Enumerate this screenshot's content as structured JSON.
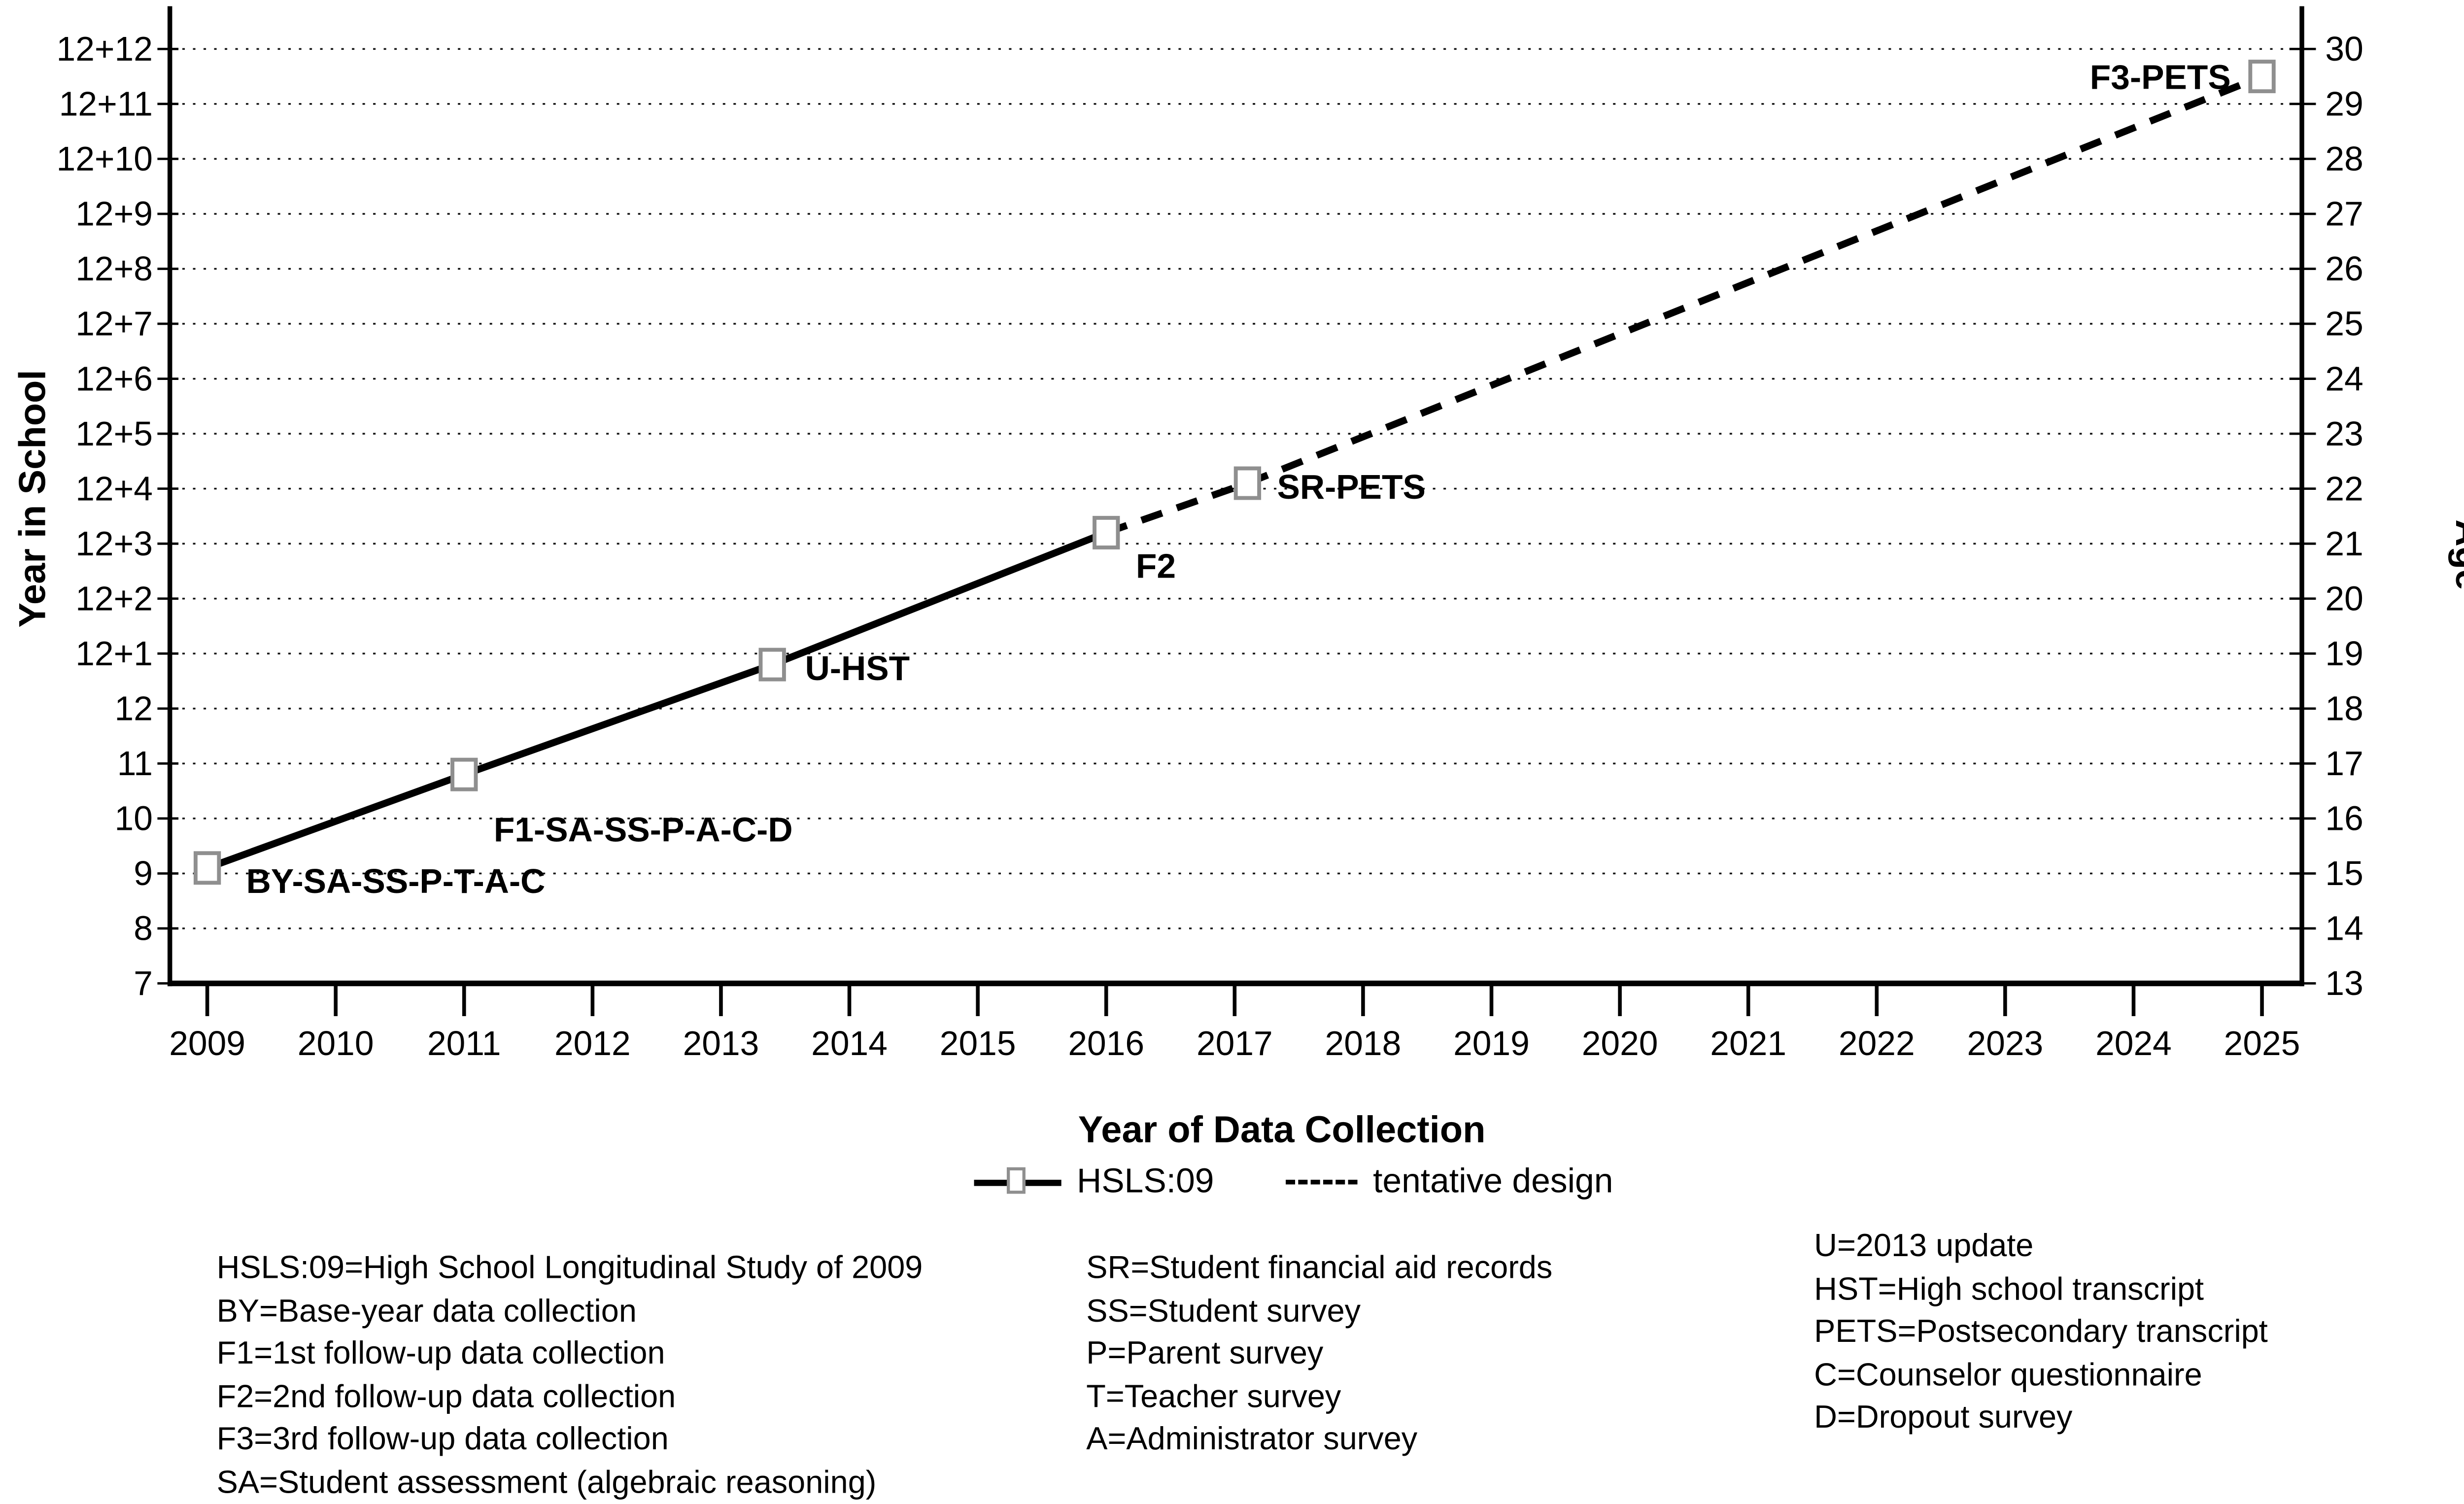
{
  "chart_data": {
    "type": "line",
    "title": "",
    "xlabel": "Year of Data Collection",
    "ylabel_left": "Year in School",
    "ylabel_right": "Age",
    "x_ticks": [
      2009,
      2010,
      2011,
      2012,
      2013,
      2014,
      2015,
      2016,
      2017,
      2018,
      2019,
      2020,
      2021,
      2022,
      2023,
      2024,
      2025
    ],
    "y_ticks_left": [
      "7",
      "8",
      "9",
      "10",
      "11",
      "12",
      "12+1",
      "12+2",
      "12+3",
      "12+4",
      "12+5",
      "12+6",
      "12+7",
      "12+8",
      "12+9",
      "12+10",
      "12+11",
      "12+12"
    ],
    "y_ticks_right": [
      "13",
      "14",
      "15",
      "16",
      "17",
      "18",
      "19",
      "20",
      "21",
      "22",
      "23",
      "24",
      "25",
      "26",
      "27",
      "28",
      "29",
      "30"
    ],
    "x_axis_range": [
      2008.6,
      2025.3
    ],
    "y_axis_note": "left axis: year in school from 7 to 12+12; right axis: age 13 to 30; one unit per year",
    "grid": "dotted horizontal gridlines at every school-year level",
    "legend_position": "below chart",
    "series": [
      {
        "name": "HSLS:09",
        "line": "solid",
        "marker": "open-square",
        "points": [
          {
            "id": "BY",
            "label": "BY-SA-SS-P-T-A-C",
            "label_side": "right",
            "year": 2009,
            "school_year": 9.1,
            "age": 15.1
          },
          {
            "id": "F1",
            "label": "F1-SA-SS-P-A-C-D",
            "label_side": "below-right",
            "year": 2011,
            "school_year": 10.8,
            "age": 16.8
          },
          {
            "id": "U",
            "label": "U-HST",
            "label_side": "right",
            "year": 2013.4,
            "school_year": 12.8,
            "age": 18.8
          },
          {
            "id": "F2",
            "label": "F2",
            "label_side": "below-right",
            "year": 2016,
            "school_year": 15.2,
            "age": 21.2
          }
        ]
      },
      {
        "name": "tentative design",
        "line": "dashed",
        "marker": "open-square",
        "points": [
          {
            "id": "F2",
            "label": "",
            "label_side": "none",
            "year": 2016,
            "school_year": 15.2,
            "age": 21.2
          },
          {
            "id": "SR",
            "label": "SR-PETS",
            "label_side": "right",
            "year": 2017.1,
            "school_year": 16.1,
            "age": 22.1
          },
          {
            "id": "F3",
            "label": "F3-PETS",
            "label_side": "left",
            "year": 2025,
            "school_year": 23.5,
            "age": 29.5
          }
        ]
      }
    ]
  },
  "legend": {
    "hsls_label": "HSLS:09",
    "tentative_label": "tentative design"
  },
  "definitions": {
    "col1": [
      "HSLS:09=High School Longitudinal Study of 2009",
      "BY=Base-year data collection",
      "F1=1st follow-up data collection",
      "F2=2nd follow-up data collection",
      "F3=3rd follow-up data collection",
      "SA=Student assessment (algebraic reasoning)"
    ],
    "col2": [
      "SR=Student financial aid records",
      "SS=Student survey",
      "P=Parent survey",
      "T=Teacher survey",
      "A=Administrator survey"
    ],
    "col3": [
      "U=2013 update",
      "HST=High school transcript",
      "PETS=Postsecondary transcript",
      "C=Counselor questionnaire",
      "D=Dropout survey"
    ]
  },
  "colors": {
    "line": "#000000",
    "marker_border": "#8f8f8f",
    "marker_fill": "#ffffff",
    "gridline": "#111111",
    "text": "#000000",
    "background": "#ffffff"
  }
}
